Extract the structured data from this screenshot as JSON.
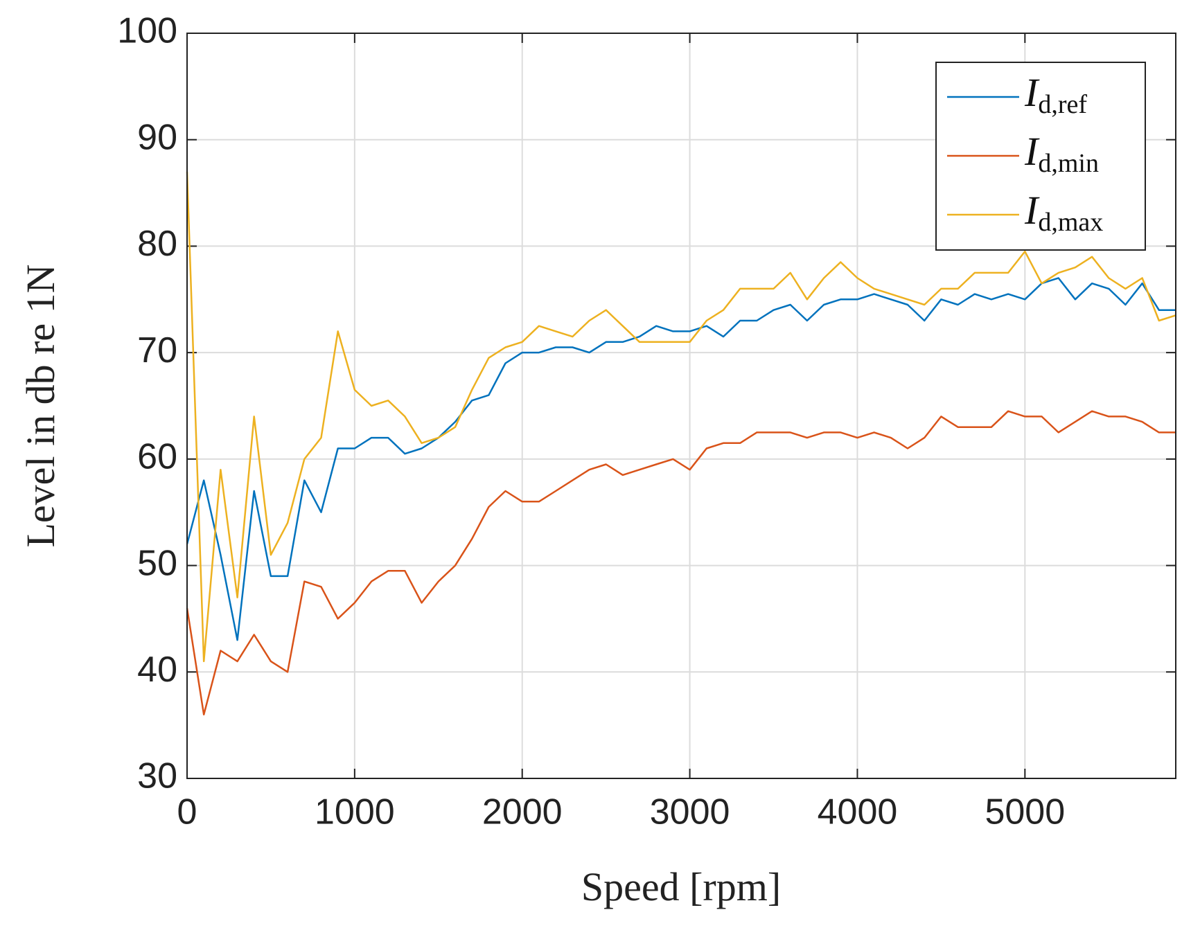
{
  "chart_data": {
    "type": "line",
    "xlabel": "Speed [rpm]",
    "ylabel": "Level in db re 1N",
    "x": [
      0,
      100,
      200,
      300,
      400,
      500,
      600,
      700,
      800,
      900,
      1000,
      1100,
      1200,
      1300,
      1400,
      1500,
      1600,
      1700,
      1800,
      1900,
      2000,
      2100,
      2200,
      2300,
      2400,
      2500,
      2600,
      2700,
      2800,
      2900,
      3000,
      3100,
      3200,
      3300,
      3400,
      3500,
      3600,
      3700,
      3800,
      3900,
      4000,
      4100,
      4200,
      4300,
      4400,
      4500,
      4600,
      4700,
      4800,
      4900,
      5000,
      5100,
      5200,
      5300,
      5400,
      5500,
      5600,
      5700,
      5800,
      5900
    ],
    "series": [
      {
        "name": "Id,ref",
        "color": "#0072bd",
        "values": [
          52,
          58,
          51,
          43,
          57,
          49,
          49,
          58,
          55,
          61,
          61,
          62,
          62,
          60.5,
          61,
          62,
          63.5,
          65.5,
          66,
          69,
          70,
          70,
          70.5,
          70.5,
          70,
          71,
          71,
          71.5,
          72.5,
          72,
          72,
          72.5,
          71.5,
          73,
          73,
          74,
          74.5,
          73,
          74.5,
          75,
          75,
          75.5,
          75,
          74.5,
          73,
          75,
          74.5,
          75.5,
          75,
          75.5,
          75,
          76.5,
          77,
          75,
          76.5,
          76,
          74.5,
          76.5,
          74,
          74
        ]
      },
      {
        "name": "Id,min",
        "color": "#d95319",
        "values": [
          46,
          36,
          42,
          41,
          43.5,
          41,
          40,
          48.5,
          48,
          45,
          46.5,
          48.5,
          49.5,
          49.5,
          46.5,
          48.5,
          50,
          52.5,
          55.5,
          57,
          56,
          56,
          57,
          58,
          59,
          59.5,
          58.5,
          59,
          59.5,
          60,
          59,
          61,
          61.5,
          61.5,
          62.5,
          62.5,
          62.5,
          62,
          62.5,
          62.5,
          62,
          62.5,
          62,
          61,
          62,
          64,
          63,
          63,
          63,
          64.5,
          64,
          64,
          62.5,
          63.5,
          64.5,
          64,
          64,
          63.5,
          62.5,
          62.5
        ]
      },
      {
        "name": "Id,max",
        "color": "#edb120",
        "values": [
          87,
          41,
          59,
          47,
          64,
          51,
          54,
          60,
          62,
          72,
          66.5,
          65,
          65.5,
          64,
          61.5,
          62,
          63,
          66.5,
          69.5,
          70.5,
          71,
          72.5,
          72,
          71.5,
          73,
          74,
          72.5,
          71,
          71,
          71,
          71,
          73,
          74,
          76,
          76,
          76,
          77.5,
          75,
          77,
          78.5,
          77,
          76,
          75.5,
          75,
          74.5,
          76,
          76,
          77.5,
          77.5,
          77.5,
          79.5,
          76.5,
          77.5,
          78,
          79,
          77,
          76,
          77,
          73,
          73.5
        ]
      }
    ],
    "xlim": [
      0,
      5900
    ],
    "ylim": [
      30,
      100
    ],
    "xticks": [
      0,
      1000,
      2000,
      3000,
      4000,
      5000
    ],
    "yticks": [
      30,
      40,
      50,
      60,
      70,
      80,
      90,
      100
    ],
    "grid": true,
    "legend": "northeast"
  }
}
